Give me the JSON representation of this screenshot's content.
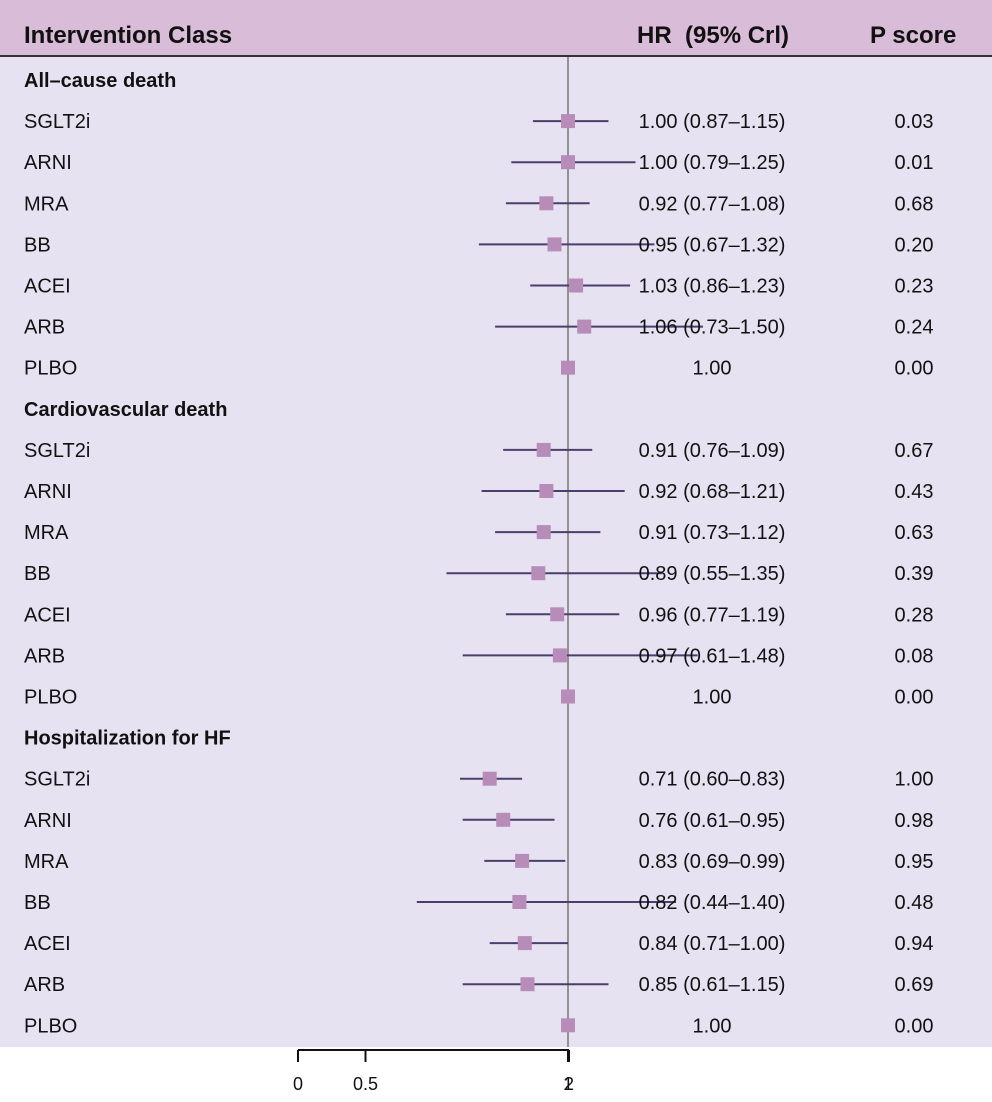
{
  "header": {
    "col1": "Intervention Class",
    "col2": "HR  (95% Crl)",
    "col3": "P score"
  },
  "colors": {
    "header_bg": "#d8bcd8",
    "plot_bg": "#e6e2f1",
    "marker": "#b88cb8",
    "ci_line": "#4a3f6b",
    "ref_line": "#666666"
  },
  "chart_data": {
    "type": "forest",
    "reference_value": 1,
    "xlim": [
      0,
      2
    ],
    "x_ticks": [
      "0",
      "0.5",
      "1",
      "2"
    ],
    "groups": [
      {
        "title": "All–cause death",
        "rows": [
          {
            "label": "SGLT2i",
            "hr": 1.0,
            "lo": 0.87,
            "hi": 1.15,
            "text": "1.00 (0.87–1.15)",
            "p": "0.03"
          },
          {
            "label": "ARNI",
            "hr": 1.0,
            "lo": 0.79,
            "hi": 1.25,
            "text": "1.00 (0.79–1.25)",
            "p": "0.01"
          },
          {
            "label": "MRA",
            "hr": 0.92,
            "lo": 0.77,
            "hi": 1.08,
            "text": "0.92 (0.77–1.08)",
            "p": "0.68"
          },
          {
            "label": "BB",
            "hr": 0.95,
            "lo": 0.67,
            "hi": 1.32,
            "text": "0.95 (0.67–1.32)",
            "p": "0.20"
          },
          {
            "label": "ACEI",
            "hr": 1.03,
            "lo": 0.86,
            "hi": 1.23,
            "text": "1.03 (0.86–1.23)",
            "p": "0.23"
          },
          {
            "label": "ARB",
            "hr": 1.06,
            "lo": 0.73,
            "hi": 1.5,
            "text": "1.06 (0.73–1.50)",
            "p": "0.24"
          },
          {
            "label": "PLBO",
            "hr": 1.0,
            "lo": null,
            "hi": null,
            "text": "1.00",
            "p": "0.00"
          }
        ]
      },
      {
        "title": "Cardiovascular death",
        "rows": [
          {
            "label": "SGLT2i",
            "hr": 0.91,
            "lo": 0.76,
            "hi": 1.09,
            "text": "0.91 (0.76–1.09)",
            "p": "0.67"
          },
          {
            "label": "ARNI",
            "hr": 0.92,
            "lo": 0.68,
            "hi": 1.21,
            "text": "0.92 (0.68–1.21)",
            "p": "0.43"
          },
          {
            "label": "MRA",
            "hr": 0.91,
            "lo": 0.73,
            "hi": 1.12,
            "text": "0.91 (0.73–1.12)",
            "p": "0.63"
          },
          {
            "label": "BB",
            "hr": 0.89,
            "lo": 0.55,
            "hi": 1.35,
            "text": "0.89 (0.55–1.35)",
            "p": "0.39"
          },
          {
            "label": "ACEI",
            "hr": 0.96,
            "lo": 0.77,
            "hi": 1.19,
            "text": "0.96 (0.77–1.19)",
            "p": "0.28"
          },
          {
            "label": "ARB",
            "hr": 0.97,
            "lo": 0.61,
            "hi": 1.48,
            "text": "0.97 (0.61–1.48)",
            "p": "0.08"
          },
          {
            "label": "PLBO",
            "hr": 1.0,
            "lo": null,
            "hi": null,
            "text": "1.00",
            "p": "0.00"
          }
        ]
      },
      {
        "title": "Hospitalization for HF",
        "rows": [
          {
            "label": "SGLT2i",
            "hr": 0.71,
            "lo": 0.6,
            "hi": 0.83,
            "text": "0.71 (0.60–0.83)",
            "p": "1.00"
          },
          {
            "label": "ARNI",
            "hr": 0.76,
            "lo": 0.61,
            "hi": 0.95,
            "text": "0.76 (0.61–0.95)",
            "p": "0.98"
          },
          {
            "label": "MRA",
            "hr": 0.83,
            "lo": 0.69,
            "hi": 0.99,
            "text": "0.83 (0.69–0.99)",
            "p": "0.95"
          },
          {
            "label": "BB",
            "hr": 0.82,
            "lo": 0.44,
            "hi": 1.4,
            "text": "0.82 (0.44–1.40)",
            "p": "0.48"
          },
          {
            "label": "ACEI",
            "hr": 0.84,
            "lo": 0.71,
            "hi": 1.0,
            "text": "0.84 (0.71–1.00)",
            "p": "0.94"
          },
          {
            "label": "ARB",
            "hr": 0.85,
            "lo": 0.61,
            "hi": 1.15,
            "text": "0.85 (0.61–1.15)",
            "p": "0.69"
          },
          {
            "label": "PLBO",
            "hr": 1.0,
            "lo": null,
            "hi": null,
            "text": "1.00",
            "p": "0.00"
          }
        ]
      }
    ]
  }
}
